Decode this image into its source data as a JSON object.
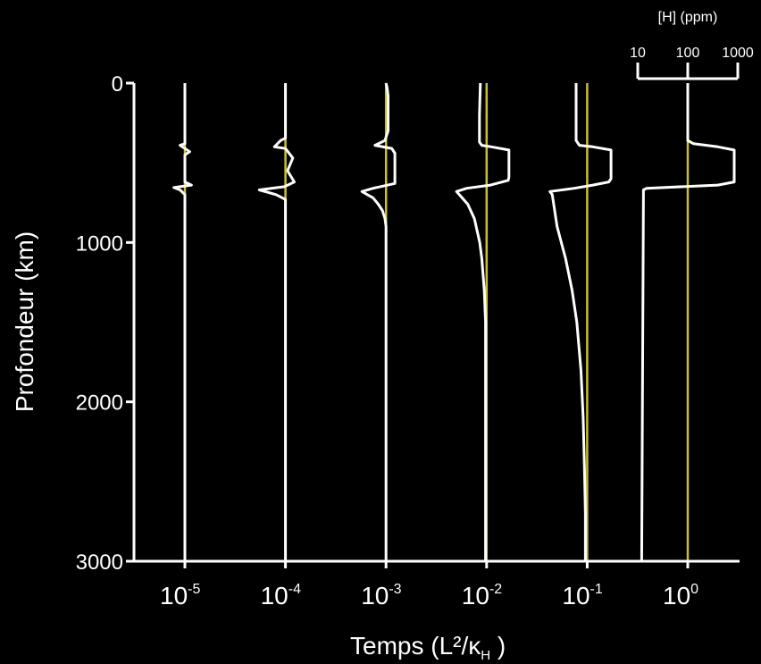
{
  "chart_data": {
    "type": "line",
    "ylabel": "Profondeur (km)",
    "xlabel": {
      "main": "Temps (L²/κ",
      "sub": "H",
      "close": " )"
    },
    "yticks": [
      "0",
      "1000",
      "2000",
      "3000"
    ],
    "ylim": [
      0,
      3000
    ],
    "y_inverted": true,
    "xticks": [
      {
        "base": "10",
        "exp": "-5"
      },
      {
        "base": "10",
        "exp": "-4"
      },
      {
        "base": "10",
        "exp": "-3"
      },
      {
        "base": "10",
        "exp": "-2"
      },
      {
        "base": "10",
        "exp": "-1"
      },
      {
        "base": "10",
        "exp": "0"
      }
    ],
    "x_scale": "log",
    "concentration_scale": {
      "title": "[H] (ppm)",
      "ticks": [
        "10",
        "100",
        "1000"
      ],
      "scale": "log"
    },
    "profile_color": "#ffffff",
    "reference_line_color": "#c8c030",
    "reference_concentration_ppm": 100,
    "series": [
      {
        "time_exp": -5,
        "points": [
          [
            0,
            100
          ],
          [
            380,
            100
          ],
          [
            390,
            80
          ],
          [
            410,
            100
          ],
          [
            430,
            125
          ],
          [
            450,
            100
          ],
          [
            620,
            100
          ],
          [
            640,
            135
          ],
          [
            655,
            60
          ],
          [
            670,
            80
          ],
          [
            700,
            100
          ],
          [
            3000,
            100
          ]
        ]
      },
      {
        "time_exp": -4,
        "points": [
          [
            0,
            100
          ],
          [
            345,
            100
          ],
          [
            360,
            80
          ],
          [
            400,
            60
          ],
          [
            410,
            100
          ],
          [
            470,
            140
          ],
          [
            550,
            110
          ],
          [
            620,
            150
          ],
          [
            650,
            95
          ],
          [
            670,
            30
          ],
          [
            700,
            65
          ],
          [
            730,
            100
          ],
          [
            3000,
            100
          ]
        ]
      },
      {
        "time_exp": -3,
        "points": [
          [
            0,
            100
          ],
          [
            30,
            105
          ],
          [
            80,
            110
          ],
          [
            300,
            110
          ],
          [
            360,
            95
          ],
          [
            390,
            60
          ],
          [
            410,
            130
          ],
          [
            440,
            150
          ],
          [
            540,
            150
          ],
          [
            610,
            150
          ],
          [
            630,
            150
          ],
          [
            660,
            55
          ],
          [
            680,
            33
          ],
          [
            720,
            55
          ],
          [
            760,
            70
          ],
          [
            800,
            85
          ],
          [
            850,
            95
          ],
          [
            900,
            100
          ],
          [
            3000,
            100
          ]
        ]
      },
      {
        "time_exp": -2,
        "points": [
          [
            0,
            75
          ],
          [
            200,
            72
          ],
          [
            370,
            72
          ],
          [
            390,
            80
          ],
          [
            400,
            125
          ],
          [
            420,
            280
          ],
          [
            590,
            280
          ],
          [
            610,
            270
          ],
          [
            640,
            120
          ],
          [
            660,
            40
          ],
          [
            680,
            25
          ],
          [
            760,
            42
          ],
          [
            850,
            57
          ],
          [
            1000,
            73
          ],
          [
            1100,
            80
          ],
          [
            1300,
            90
          ],
          [
            1500,
            95
          ],
          [
            3000,
            95
          ]
        ]
      },
      {
        "time_exp": -1,
        "points": [
          [
            0,
            60
          ],
          [
            360,
            60
          ],
          [
            390,
            70
          ],
          [
            400,
            130
          ],
          [
            420,
            300
          ],
          [
            600,
            300
          ],
          [
            620,
            270
          ],
          [
            640,
            130
          ],
          [
            660,
            55
          ],
          [
            680,
            18
          ],
          [
            700,
            20
          ],
          [
            900,
            25
          ],
          [
            1100,
            37
          ],
          [
            1300,
            50
          ],
          [
            1500,
            62
          ],
          [
            1800,
            75
          ],
          [
            2100,
            83
          ],
          [
            2400,
            88
          ],
          [
            2700,
            92
          ],
          [
            3000,
            92
          ]
        ]
      },
      {
        "time_exp": 0,
        "points": [
          [
            0,
            100
          ],
          [
            360,
            100
          ],
          [
            380,
            130
          ],
          [
            400,
            400
          ],
          [
            420,
            850
          ],
          [
            600,
            850
          ],
          [
            620,
            850
          ],
          [
            640,
            400
          ],
          [
            660,
            15
          ],
          [
            670,
            13
          ],
          [
            3000,
            12
          ]
        ]
      }
    ]
  }
}
